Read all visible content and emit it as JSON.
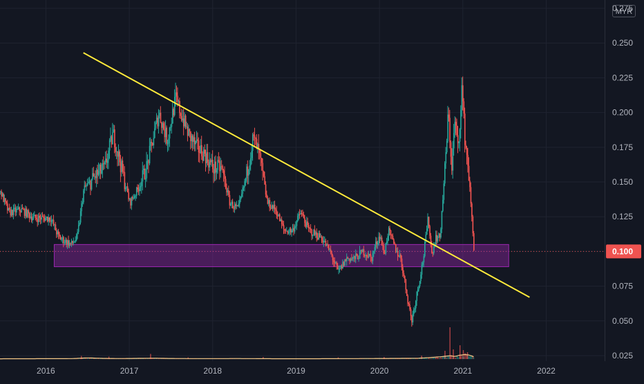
{
  "currency": "MYR",
  "chart_data": {
    "type": "candlestick",
    "y_axis": {
      "position": "right",
      "ticks": [
        "0.275",
        "0.250",
        "0.225",
        "0.200",
        "0.175",
        "0.150",
        "0.125",
        "0.100",
        "0.075",
        "0.050",
        "0.025"
      ],
      "range": [
        0.021,
        0.281
      ]
    },
    "x_axis": {
      "ticks": [
        "2016",
        "2017",
        "2018",
        "2019",
        "2020",
        "2021",
        "2022"
      ],
      "range": [
        2015.45,
        2022.7
      ]
    },
    "last_price": {
      "label": "0.100",
      "value": 0.1
    },
    "grid": true,
    "price_path": [
      [
        2015.45,
        0.143
      ],
      [
        2015.55,
        0.128
      ],
      [
        2015.7,
        0.13
      ],
      [
        2015.85,
        0.124
      ],
      [
        2016.05,
        0.124
      ],
      [
        2016.15,
        0.11
      ],
      [
        2016.3,
        0.105
      ],
      [
        2016.37,
        0.11
      ],
      [
        2016.45,
        0.145
      ],
      [
        2016.6,
        0.155
      ],
      [
        2016.7,
        0.16
      ],
      [
        2016.8,
        0.185
      ],
      [
        2016.9,
        0.16
      ],
      [
        2017.0,
        0.135
      ],
      [
        2017.1,
        0.145
      ],
      [
        2017.2,
        0.16
      ],
      [
        2017.35,
        0.2
      ],
      [
        2017.45,
        0.18
      ],
      [
        2017.55,
        0.21
      ],
      [
        2017.7,
        0.185
      ],
      [
        2017.8,
        0.175
      ],
      [
        2017.9,
        0.17
      ],
      [
        2018.0,
        0.16
      ],
      [
        2018.1,
        0.16
      ],
      [
        2018.2,
        0.135
      ],
      [
        2018.3,
        0.13
      ],
      [
        2018.4,
        0.155
      ],
      [
        2018.48,
        0.182
      ],
      [
        2018.55,
        0.17
      ],
      [
        2018.65,
        0.135
      ],
      [
        2018.75,
        0.13
      ],
      [
        2018.85,
        0.115
      ],
      [
        2018.95,
        0.115
      ],
      [
        2019.05,
        0.128
      ],
      [
        2019.15,
        0.115
      ],
      [
        2019.3,
        0.11
      ],
      [
        2019.4,
        0.1
      ],
      [
        2019.5,
        0.085
      ],
      [
        2019.6,
        0.095
      ],
      [
        2019.7,
        0.095
      ],
      [
        2019.8,
        0.1
      ],
      [
        2019.9,
        0.095
      ],
      [
        2019.95,
        0.105
      ],
      [
        2020.0,
        0.112
      ],
      [
        2020.05,
        0.098
      ],
      [
        2020.1,
        0.115
      ],
      [
        2020.2,
        0.1
      ],
      [
        2020.25,
        0.095
      ],
      [
        2020.32,
        0.07
      ],
      [
        2020.38,
        0.05
      ],
      [
        2020.45,
        0.072
      ],
      [
        2020.52,
        0.095
      ],
      [
        2020.58,
        0.125
      ],
      [
        2020.62,
        0.098
      ],
      [
        2020.67,
        0.11
      ],
      [
        2020.72,
        0.11
      ],
      [
        2020.78,
        0.16
      ],
      [
        2020.82,
        0.2
      ],
      [
        2020.86,
        0.16
      ],
      [
        2020.9,
        0.195
      ],
      [
        2020.94,
        0.17
      ],
      [
        2020.98,
        0.22
      ],
      [
        2021.02,
        0.18
      ],
      [
        2021.06,
        0.16
      ],
      [
        2021.1,
        0.125
      ],
      [
        2021.13,
        0.1
      ]
    ],
    "volume_path": [
      [
        2015.45,
        0.4
      ],
      [
        2016.3,
        0.6
      ],
      [
        2016.5,
        1.6
      ],
      [
        2016.7,
        0.9
      ],
      [
        2016.9,
        0.7
      ],
      [
        2017.3,
        1.2
      ],
      [
        2017.5,
        0.8
      ],
      [
        2017.8,
        0.6
      ],
      [
        2018.3,
        0.7
      ],
      [
        2018.7,
        0.5
      ],
      [
        2019.3,
        0.5
      ],
      [
        2019.8,
        0.7
      ],
      [
        2020.2,
        0.9
      ],
      [
        2020.45,
        1.1
      ],
      [
        2020.6,
        2.0
      ],
      [
        2020.75,
        3.2
      ],
      [
        2020.85,
        4.5
      ],
      [
        2020.9,
        3.3
      ],
      [
        2020.95,
        4.8
      ],
      [
        2021.02,
        6.0
      ],
      [
        2021.08,
        5.2
      ],
      [
        2021.13,
        3.0
      ]
    ],
    "volume_spikes": [
      [
        2016.42,
        4.5
      ],
      [
        2016.75,
        3.5
      ],
      [
        2017.25,
        7.5
      ],
      [
        2017.7,
        2.5
      ],
      [
        2018.6,
        3.0
      ],
      [
        2019.5,
        2.5
      ],
      [
        2020.05,
        3.0
      ],
      [
        2020.5,
        5.0
      ],
      [
        2020.78,
        12.0
      ],
      [
        2020.84,
        46.0
      ],
      [
        2020.88,
        14.0
      ],
      [
        2020.96,
        20.0
      ],
      [
        2021.0,
        13.0
      ],
      [
        2021.05,
        10.0
      ]
    ],
    "annotations": {
      "trendline": {
        "color": "#ffeb3b",
        "points": [
          [
            2016.45,
            0.243
          ],
          [
            2021.8,
            0.067
          ]
        ]
      },
      "support_zone": {
        "color": "#9c27b0",
        "x_range": [
          2016.1,
          2021.55
        ],
        "y_range": [
          0.089,
          0.105
        ]
      }
    },
    "colors": {
      "background": "#131722",
      "up": "#26a69a",
      "down": "#ef5350",
      "grid": "#1f2330",
      "text": "#b2b5be",
      "price_line": "#ef5350",
      "volume_line": "#f7c987"
    }
  }
}
